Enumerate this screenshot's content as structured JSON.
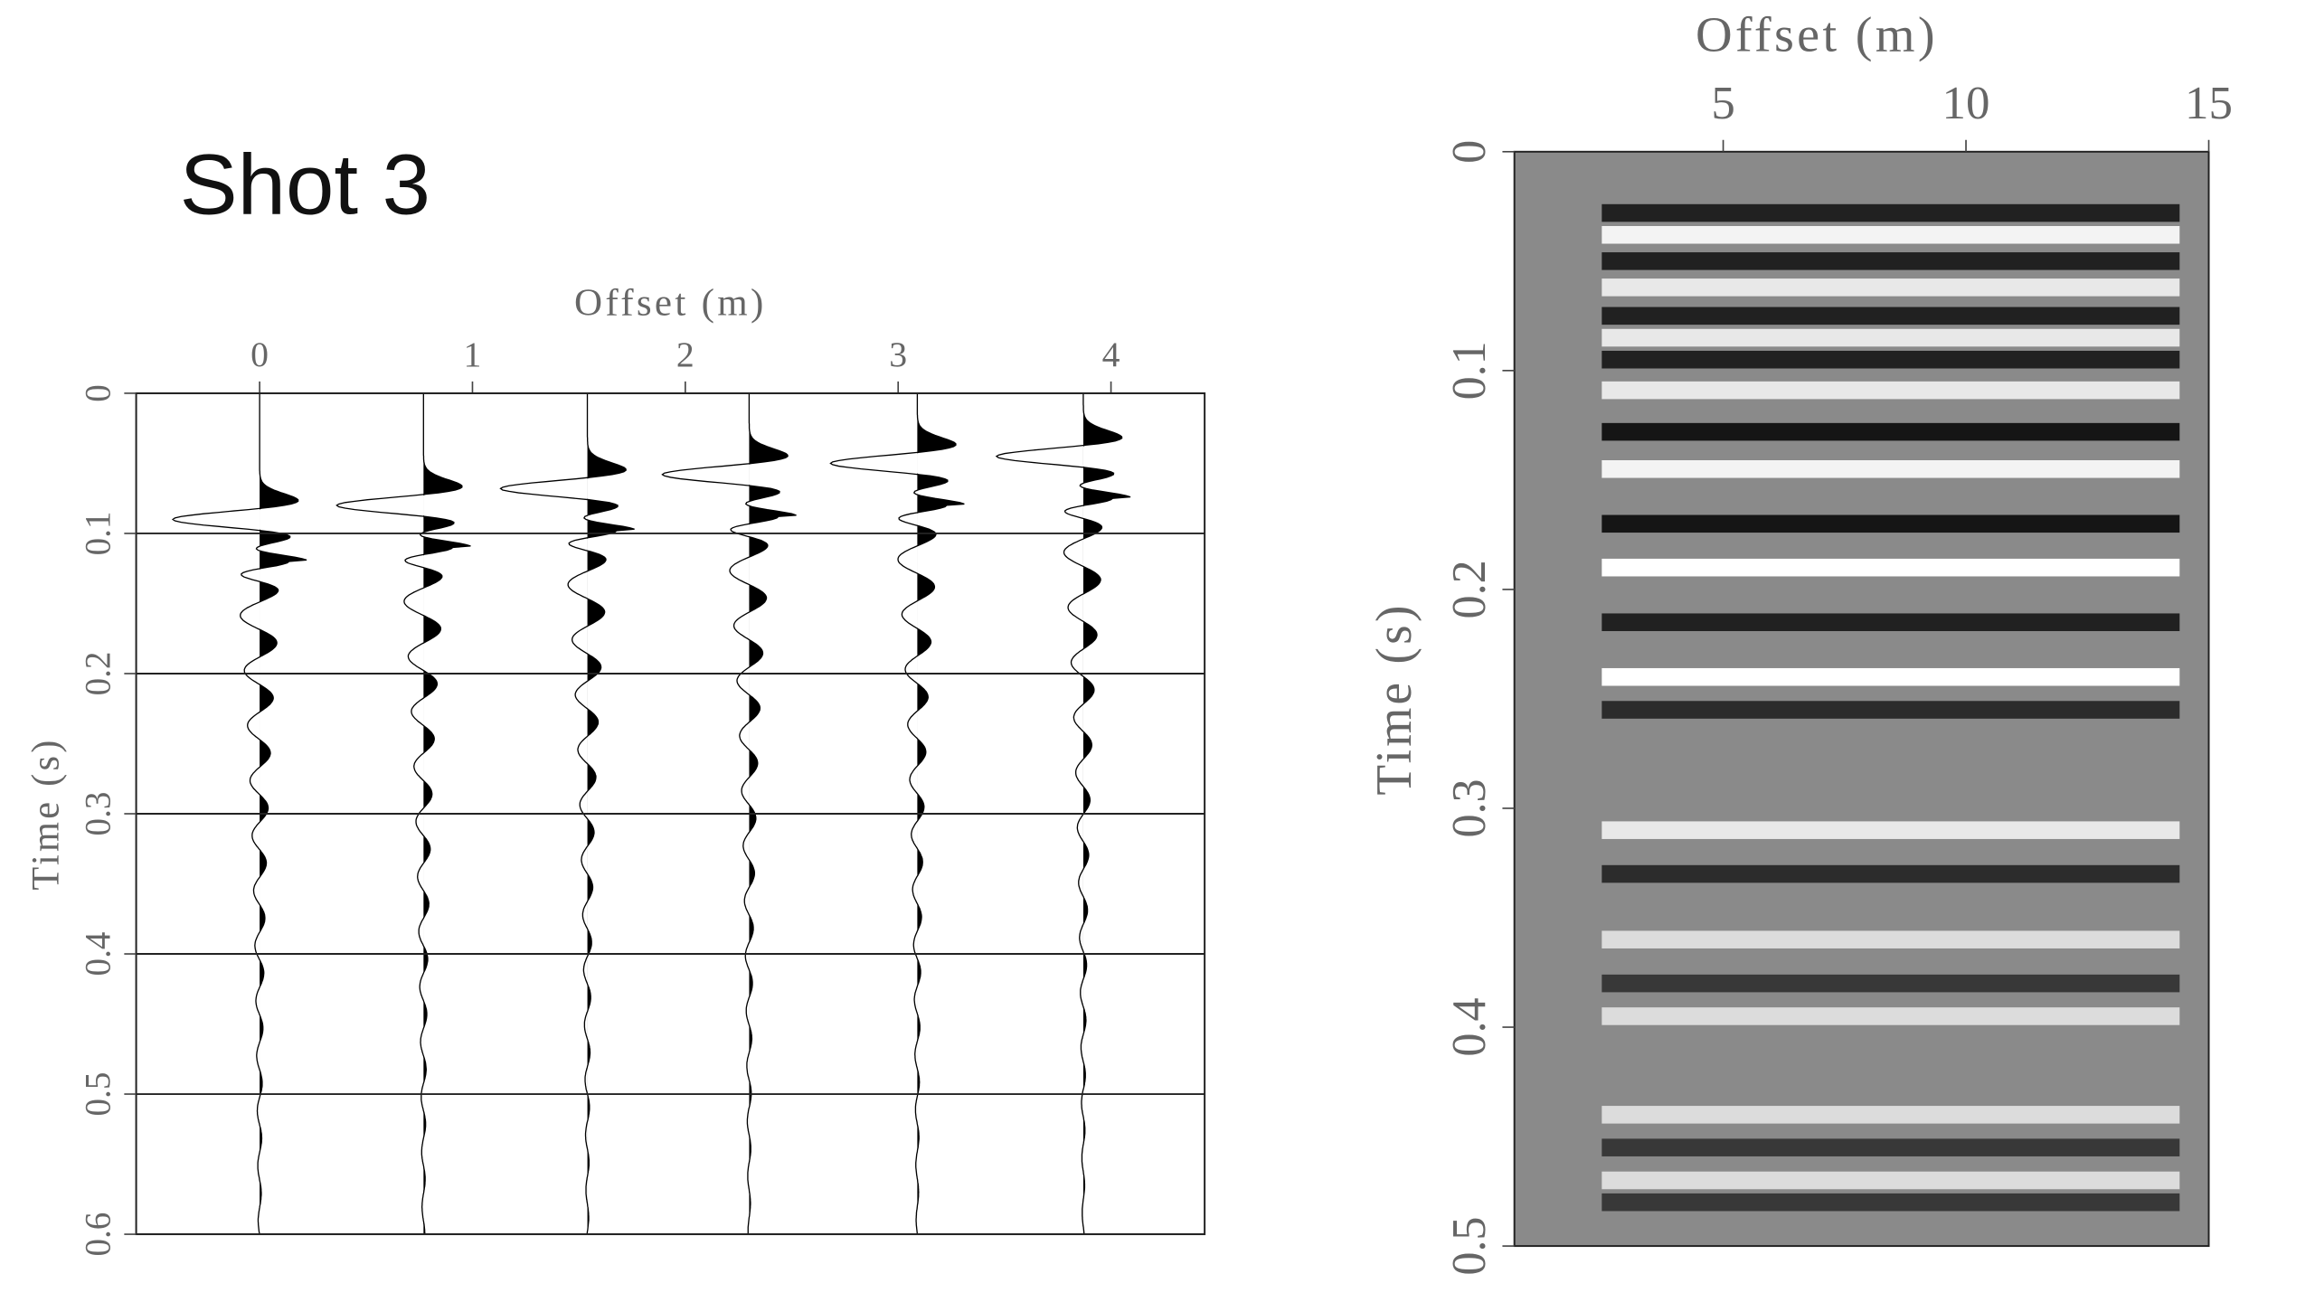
{
  "chart_data": [
    {
      "type": "wiggle",
      "title": "Shot 3",
      "xlabel": "Offset (m)",
      "ylabel": "Time (s)",
      "offsets": [
        0,
        0.77,
        1.54,
        2.3,
        3.09,
        3.87
      ],
      "arrivals": [
        0.09,
        0.08,
        0.068,
        0.058,
        0.05,
        0.045
      ],
      "xlim": [
        -0.58,
        4.44
      ],
      "ylim": [
        0,
        0.6
      ],
      "xticks": [
        0,
        1,
        2,
        3,
        4
      ],
      "yticks": [
        0,
        0.1,
        0.2,
        0.3,
        0.4,
        0.5,
        0.6
      ],
      "grid": true,
      "color": "#000000"
    },
    {
      "type": "section",
      "xlabel": "Offset (m)",
      "ylabel": "Time (s)",
      "events": [
        {
          "time": 0.028,
          "amplitude": -0.9
        },
        {
          "time": 0.038,
          "amplitude": 0.9
        },
        {
          "time": 0.05,
          "amplitude": -0.9
        },
        {
          "time": 0.062,
          "amplitude": 0.8
        },
        {
          "time": 0.075,
          "amplitude": -0.9
        },
        {
          "time": 0.085,
          "amplitude": 0.8
        },
        {
          "time": 0.095,
          "amplitude": -0.9
        },
        {
          "time": 0.109,
          "amplitude": 0.8
        },
        {
          "time": 0.128,
          "amplitude": -1
        },
        {
          "time": 0.145,
          "amplitude": 0.9
        },
        {
          "time": 0.17,
          "amplitude": -1
        },
        {
          "time": 0.19,
          "amplitude": 1
        },
        {
          "time": 0.215,
          "amplitude": -0.9
        },
        {
          "time": 0.24,
          "amplitude": 1
        },
        {
          "time": 0.255,
          "amplitude": -0.8
        },
        {
          "time": 0.31,
          "amplitude": 0.8
        },
        {
          "time": 0.33,
          "amplitude": -0.8
        },
        {
          "time": 0.36,
          "amplitude": 0.7
        },
        {
          "time": 0.38,
          "amplitude": -0.7
        },
        {
          "time": 0.395,
          "amplitude": 0.7
        },
        {
          "time": 0.44,
          "amplitude": 0.7
        },
        {
          "time": 0.455,
          "amplitude": -0.7
        },
        {
          "time": 0.47,
          "amplitude": 0.7
        },
        {
          "time": 0.48,
          "amplitude": -0.7
        }
      ],
      "event_range": [
        2.5,
        14.4
      ],
      "xlim": [
        0.7,
        15
      ],
      "ylim": [
        0,
        0.5
      ],
      "xticks": [
        5,
        10,
        15
      ],
      "yticks": [
        0,
        0.1,
        0.2,
        0.3,
        0.4,
        0.5
      ],
      "background": "#8a8a8a"
    }
  ]
}
